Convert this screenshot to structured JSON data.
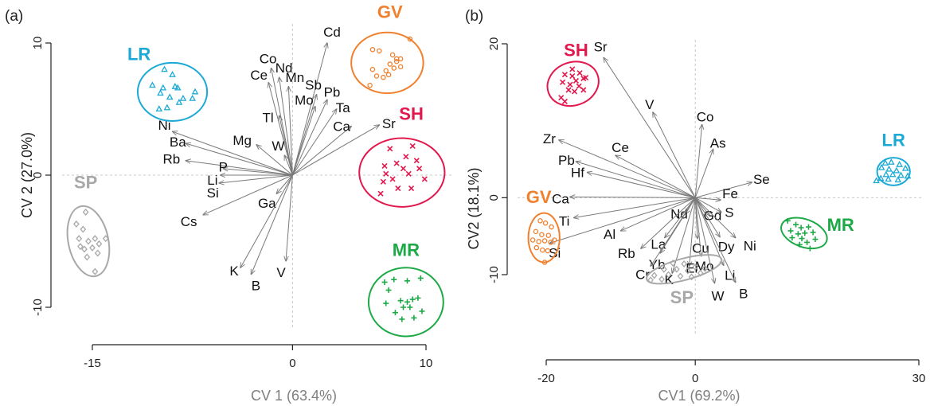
{
  "chart_data": [
    {
      "type": "scatter",
      "panel_label": "(a)",
      "xlabel": "CV 1 (63.4%)",
      "ylabel": "CV 2 (27.0%)",
      "xlim": [
        -15,
        10
      ],
      "ylim": [
        -10,
        10
      ],
      "xticks": [
        "-15",
        "0",
        "10"
      ],
      "yticks": [
        "-10",
        "0",
        "10"
      ],
      "vectors": [
        {
          "label": "Cd",
          "x": 2.6,
          "y": 10.0
        },
        {
          "label": "Co",
          "x": -1.6,
          "y": 8.1
        },
        {
          "label": "Nd",
          "x": -1.0,
          "y": 7.4
        },
        {
          "label": "Ce",
          "x": -1.8,
          "y": 7.0
        },
        {
          "label": "Mn",
          "x": -0.3,
          "y": 6.7
        },
        {
          "label": "Sb",
          "x": 1.8,
          "y": 6.1
        },
        {
          "label": "Pb",
          "x": 2.6,
          "y": 5.7
        },
        {
          "label": "Mo",
          "x": 1.7,
          "y": 5.2
        },
        {
          "label": "Ta",
          "x": 3.3,
          "y": 5.0
        },
        {
          "label": "Tl",
          "x": -1.0,
          "y": 4.5
        },
        {
          "label": "Ca",
          "x": 4.4,
          "y": 3.7
        },
        {
          "label": "Sr",
          "x": 6.5,
          "y": 3.8
        },
        {
          "label": "Ni",
          "x": -9.0,
          "y": 3.3
        },
        {
          "label": "Ba",
          "x": -8.0,
          "y": 2.4
        },
        {
          "label": "Mg",
          "x": -2.7,
          "y": 2.3
        },
        {
          "label": "W",
          "x": -0.6,
          "y": 1.5
        },
        {
          "label": "Rb",
          "x": -8.0,
          "y": 1.1
        },
        {
          "label": "P",
          "x": -5.2,
          "y": 0.5
        },
        {
          "label": "Li",
          "x": -5.4,
          "y": 0.0
        },
        {
          "label": "Si",
          "x": -5.5,
          "y": -0.6
        },
        {
          "label": "Ga",
          "x": -1.2,
          "y": -1.4
        },
        {
          "label": "Cs",
          "x": -6.7,
          "y": -3.0
        },
        {
          "label": "K",
          "x": -3.9,
          "y": -7.0
        },
        {
          "label": "B",
          "x": -3.1,
          "y": -7.5
        },
        {
          "label": "V",
          "x": -0.5,
          "y": -6.5
        }
      ],
      "groups": [
        {
          "name": "GV",
          "color": "#f0802d",
          "marker": "circle",
          "ellipse": {
            "cx": 7.1,
            "cy": 8.5,
            "rx": 2.7,
            "ry": 2.3,
            "angle": 0
          },
          "points": [
            [
              6.0,
              9.5
            ],
            [
              6.5,
              9.4
            ],
            [
              8.8,
              10.3
            ],
            [
              7.5,
              9.1
            ],
            [
              7.8,
              8.8
            ],
            [
              8.1,
              8.8
            ],
            [
              7.0,
              7.9
            ],
            [
              7.3,
              8.4
            ],
            [
              7.6,
              8.1
            ],
            [
              7.8,
              8.6
            ],
            [
              6.3,
              7.5
            ],
            [
              6.8,
              7.4
            ],
            [
              7.2,
              7.6
            ],
            [
              5.8,
              6.8
            ],
            [
              6.0,
              8.0
            ],
            [
              8.1,
              8.2
            ]
          ]
        },
        {
          "name": "LR",
          "color": "#1ba9d5",
          "marker": "triangle",
          "ellipse": {
            "cx": -9.0,
            "cy": 6.3,
            "rx": 2.6,
            "ry": 2.2,
            "angle": 0
          },
          "points": [
            [
              -9.6,
              8.0
            ],
            [
              -9.0,
              7.6
            ],
            [
              -10.5,
              6.8
            ],
            [
              -9.7,
              6.6
            ],
            [
              -8.6,
              6.6
            ],
            [
              -9.9,
              6.2
            ],
            [
              -9.2,
              5.9
            ],
            [
              -8.2,
              5.8
            ],
            [
              -7.3,
              6.3
            ],
            [
              -8.5,
              5.5
            ],
            [
              -10.0,
              5.0
            ],
            [
              -9.4,
              5.1
            ],
            [
              -7.5,
              5.8
            ],
            [
              -8.8,
              6.7
            ]
          ]
        },
        {
          "name": "SH",
          "color": "#e2184c",
          "marker": "x",
          "ellipse": {
            "cx": 8.2,
            "cy": 0.2,
            "rx": 3.2,
            "ry": 2.6,
            "angle": 0
          },
          "points": [
            [
              7.3,
              2.0
            ],
            [
              9.0,
              2.2
            ],
            [
              8.5,
              1.4
            ],
            [
              6.9,
              0.7
            ],
            [
              7.8,
              0.9
            ],
            [
              9.3,
              1.1
            ],
            [
              8.3,
              0.5
            ],
            [
              8.7,
              0.1
            ],
            [
              7.0,
              0.1
            ],
            [
              9.5,
              0.5
            ],
            [
              6.8,
              -0.5
            ],
            [
              7.5,
              -0.3
            ],
            [
              8.9,
              -1.0
            ],
            [
              6.6,
              -1.4
            ],
            [
              9.9,
              -0.3
            ],
            [
              7.9,
              -1.0
            ]
          ]
        },
        {
          "name": "MR",
          "color": "#1ea947",
          "marker": "plus",
          "ellipse": {
            "cx": 8.5,
            "cy": -9.6,
            "rx": 2.8,
            "ry": 2.6,
            "angle": 0
          },
          "points": [
            [
              7.6,
              -7.9
            ],
            [
              8.6,
              -8.0
            ],
            [
              9.6,
              -7.8
            ],
            [
              7.2,
              -8.7
            ],
            [
              8.1,
              -9.5
            ],
            [
              8.6,
              -9.6
            ],
            [
              9.0,
              -9.4
            ],
            [
              9.4,
              -9.3
            ],
            [
              7.0,
              -9.7
            ],
            [
              8.3,
              -10.0
            ],
            [
              8.8,
              -10.0
            ],
            [
              9.7,
              -10.3
            ],
            [
              7.7,
              -10.4
            ],
            [
              8.2,
              -10.9
            ],
            [
              9.1,
              -10.8
            ],
            [
              6.9,
              -8.1
            ]
          ]
        },
        {
          "name": "SP",
          "color": "#a8a8a8",
          "marker": "diamond",
          "ellipse": {
            "cx": -15.3,
            "cy": -5.0,
            "rx": 1.5,
            "ry": 2.7,
            "angle": -12
          },
          "points": [
            [
              -15.5,
              -2.8
            ],
            [
              -16.2,
              -3.7
            ],
            [
              -15.7,
              -4.1
            ],
            [
              -16.0,
              -4.8
            ],
            [
              -15.3,
              -5.0
            ],
            [
              -14.8,
              -4.8
            ],
            [
              -15.0,
              -5.5
            ],
            [
              -15.6,
              -5.6
            ],
            [
              -14.6,
              -5.9
            ],
            [
              -15.9,
              -5.4
            ],
            [
              -14.0,
              -4.8
            ],
            [
              -14.8,
              -7.3
            ],
            [
              -15.4,
              -6.2
            ],
            [
              -14.5,
              -5.2
            ]
          ]
        }
      ]
    },
    {
      "type": "scatter",
      "panel_label": "(b)",
      "xlabel": "CV1 (69.2%)",
      "ylabel": "CV2 (18.1%)",
      "xlim": [
        -20,
        30
      ],
      "ylim": [
        -10,
        20
      ],
      "xticks": [
        "-20",
        "0",
        "30"
      ],
      "yticks": [
        "-10",
        "0",
        "20"
      ],
      "vectors": [
        {
          "label": "Sr",
          "x": -12.3,
          "y": 18.2
        },
        {
          "label": "V",
          "x": -5.7,
          "y": 11.1
        },
        {
          "label": "Co",
          "x": 0.9,
          "y": 9.5
        },
        {
          "label": "As",
          "x": 2.4,
          "y": 6.3
        },
        {
          "label": "Zr",
          "x": -18.3,
          "y": 7.5
        },
        {
          "label": "Ce",
          "x": -10.7,
          "y": 5.5
        },
        {
          "label": "Pb",
          "x": -16.0,
          "y": 4.7
        },
        {
          "label": "Hf",
          "x": -14.5,
          "y": 3.3
        },
        {
          "label": "Se",
          "x": 7.6,
          "y": 2.0
        },
        {
          "label": "Ca",
          "x": -16.8,
          "y": 0.1
        },
        {
          "label": "Fe",
          "x": 3.4,
          "y": -0.3
        },
        {
          "label": "Ti",
          "x": -16.3,
          "y": -2.6
        },
        {
          "label": "Nd",
          "x": -1.3,
          "y": -2.1
        },
        {
          "label": "Gd",
          "x": 1.9,
          "y": -2.3
        },
        {
          "label": "S",
          "x": 3.5,
          "y": -1.9
        },
        {
          "label": "Al",
          "x": -10.0,
          "y": -4.3
        },
        {
          "label": "La",
          "x": -4.1,
          "y": -5.2
        },
        {
          "label": "Cu",
          "x": 0.3,
          "y": -5.3
        },
        {
          "label": "Dy",
          "x": 3.3,
          "y": -5.1
        },
        {
          "label": "Ni",
          "x": 5.4,
          "y": -5.2
        },
        {
          "label": "Rb",
          "x": -7.3,
          "y": -6.6
        },
        {
          "label": "Yb",
          "x": -4.7,
          "y": -7.2
        },
        {
          "label": "Mo",
          "x": 0.8,
          "y": -7.6
        },
        {
          "label": "Si",
          "x": -19.5,
          "y": -5.9
        },
        {
          "label": "Cr",
          "x": -6.0,
          "y": -8.9
        },
        {
          "label": "K",
          "x": -3.1,
          "y": -9.8
        },
        {
          "label": "Er",
          "x": -0.8,
          "y": -8.9
        },
        {
          "label": "Li",
          "x": 3.8,
          "y": -8.8
        },
        {
          "label": "W",
          "x": 2.6,
          "y": -11.1
        },
        {
          "label": "B",
          "x": 5.4,
          "y": -11.0
        }
      ],
      "groups": [
        {
          "name": "SH",
          "color": "#e2184c",
          "marker": "x",
          "ellipse": {
            "cx": -16.4,
            "cy": 14.8,
            "rx": 3.5,
            "ry": 2.8,
            "angle": -20
          },
          "points": [
            [
              -16.5,
              16.7
            ],
            [
              -15.5,
              16.2
            ],
            [
              -17.5,
              16.0
            ],
            [
              -16.5,
              15.8
            ],
            [
              -15.0,
              15.5
            ],
            [
              -16.0,
              15.2
            ],
            [
              -17.8,
              15.0
            ],
            [
              -16.8,
              14.7
            ],
            [
              -15.6,
              14.5
            ],
            [
              -17.0,
              14.0
            ],
            [
              -16.2,
              13.8
            ],
            [
              -15.0,
              14.0
            ],
            [
              -18.0,
              13.0
            ],
            [
              -17.5,
              12.5
            ],
            [
              -14.7,
              15.6
            ]
          ]
        },
        {
          "name": "LR",
          "color": "#1ba9d5",
          "marker": "triangle",
          "ellipse": {
            "cx": 26.6,
            "cy": 3.4,
            "rx": 2.2,
            "ry": 1.8,
            "angle": 0
          },
          "points": [
            [
              25.5,
              4.5
            ],
            [
              26.3,
              4.6
            ],
            [
              27.4,
              4.3
            ],
            [
              25.0,
              3.9
            ],
            [
              26.0,
              3.7
            ],
            [
              27.0,
              3.5
            ],
            [
              28.2,
              3.8
            ],
            [
              25.6,
              3.0
            ],
            [
              26.5,
              3.0
            ],
            [
              27.6,
              2.9
            ],
            [
              24.9,
              2.5
            ],
            [
              25.9,
              2.4
            ],
            [
              27.2,
              2.3
            ],
            [
              28.5,
              2.8
            ],
            [
              24.3,
              2.2
            ]
          ]
        },
        {
          "name": "GV",
          "color": "#f0802d",
          "marker": "circle",
          "ellipse": {
            "cx": -20.3,
            "cy": -5.2,
            "rx": 2.1,
            "ry": 3.2,
            "angle": 0
          },
          "points": [
            [
              -20.8,
              -3.0
            ],
            [
              -20.1,
              -3.3
            ],
            [
              -19.3,
              -3.8
            ],
            [
              -21.4,
              -4.4
            ],
            [
              -20.6,
              -4.8
            ],
            [
              -19.7,
              -4.9
            ],
            [
              -21.8,
              -5.5
            ],
            [
              -21.0,
              -5.7
            ],
            [
              -20.2,
              -5.6
            ],
            [
              -19.4,
              -5.8
            ],
            [
              -21.3,
              -6.5
            ],
            [
              -20.5,
              -6.8
            ],
            [
              -19.8,
              -6.9
            ],
            [
              -20.2,
              -8.4
            ],
            [
              -18.9,
              -5.5
            ]
          ]
        },
        {
          "name": "MR",
          "color": "#1ea947",
          "marker": "plus",
          "ellipse": {
            "cx": 14.6,
            "cy": -4.6,
            "rx": 3.2,
            "ry": 1.8,
            "angle": 20
          },
          "points": [
            [
              12.4,
              -3.0
            ],
            [
              13.5,
              -3.5
            ],
            [
              14.2,
              -3.9
            ],
            [
              15.2,
              -3.8
            ],
            [
              12.8,
              -4.3
            ],
            [
              13.8,
              -4.7
            ],
            [
              14.7,
              -4.6
            ],
            [
              15.8,
              -4.5
            ],
            [
              13.0,
              -5.2
            ],
            [
              14.3,
              -5.3
            ],
            [
              15.0,
              -5.8
            ],
            [
              16.1,
              -5.4
            ],
            [
              14.0,
              -6.1
            ],
            [
              15.4,
              -6.6
            ]
          ]
        },
        {
          "name": "SP",
          "color": "#a8a8a8",
          "marker": "diamond",
          "ellipse": {
            "cx": -1.5,
            "cy": -9.3,
            "rx": 5.2,
            "ry": 1.4,
            "angle": -15
          },
          "points": [
            [
              -3.0,
              -8.5
            ],
            [
              -1.5,
              -8.6
            ],
            [
              0.0,
              -9.0
            ],
            [
              -4.2,
              -9.3
            ],
            [
              -2.5,
              -9.3
            ],
            [
              -1.0,
              -9.5
            ],
            [
              0.7,
              -9.8
            ],
            [
              -5.5,
              -10.1
            ],
            [
              -3.6,
              -10.0
            ],
            [
              -2.0,
              -10.2
            ],
            [
              -0.5,
              -10.3
            ],
            [
              -4.5,
              -10.6
            ],
            [
              1.3,
              -9.2
            ],
            [
              -6.0,
              -10.7
            ]
          ]
        }
      ]
    }
  ]
}
